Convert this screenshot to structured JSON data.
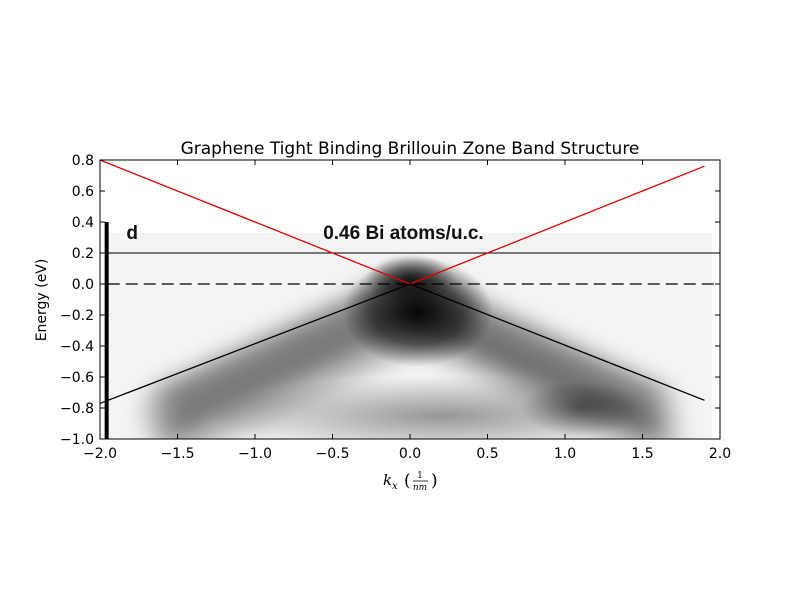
{
  "chart_data": {
    "type": "line",
    "title": "Graphene Tight Binding Brillouin Zone Band Structure",
    "xlabel": {
      "symbol": "k",
      "subscript": "x",
      "unit_numerator": "1",
      "unit_denominator": "nm"
    },
    "ylabel": "Energy (eV)",
    "xlim": [
      -2.0,
      2.0
    ],
    "ylim": [
      -1.0,
      0.8
    ],
    "xticks": [
      -2.0,
      -1.5,
      -1.0,
      -0.5,
      0.0,
      0.5,
      1.0,
      1.5,
      2.0
    ],
    "xtick_labels": [
      "−2.0",
      "−1.5",
      "−1.0",
      "−0.5",
      "0.0",
      "0.5",
      "1.0",
      "1.5",
      "2.0"
    ],
    "yticks": [
      -1.0,
      -0.8,
      -0.6,
      -0.4,
      -0.2,
      0.0,
      0.2,
      0.4,
      0.6,
      0.8
    ],
    "ytick_labels": [
      "−1.0",
      "−0.8",
      "−0.6",
      "−0.4",
      "−0.2",
      "0.0",
      "0.2",
      "0.4",
      "0.6",
      "0.8"
    ],
    "grid": false,
    "background_image": {
      "description_labels": [
        "d",
        "0.46 Bi atoms/u.c."
      ],
      "colormap": "grayscale",
      "extent_x": [
        -1.95,
        1.95
      ],
      "extent_y": [
        -1.0,
        0.33
      ]
    },
    "series": [
      {
        "color": "#e00000",
        "x": [
          -2.0,
          0.0,
          1.9
        ],
        "y": [
          0.8,
          0.0,
          0.76
        ]
      },
      {
        "color": "#000000",
        "x": [
          -2.0,
          0.0,
          1.9
        ],
        "y": [
          -0.77,
          0.0,
          -0.75
        ]
      }
    ],
    "reference_lines": [
      {
        "y": 0.2,
        "style": "solid",
        "color": "#000000"
      },
      {
        "y": 0.0,
        "style": "dashed",
        "color": "#000000"
      }
    ]
  }
}
